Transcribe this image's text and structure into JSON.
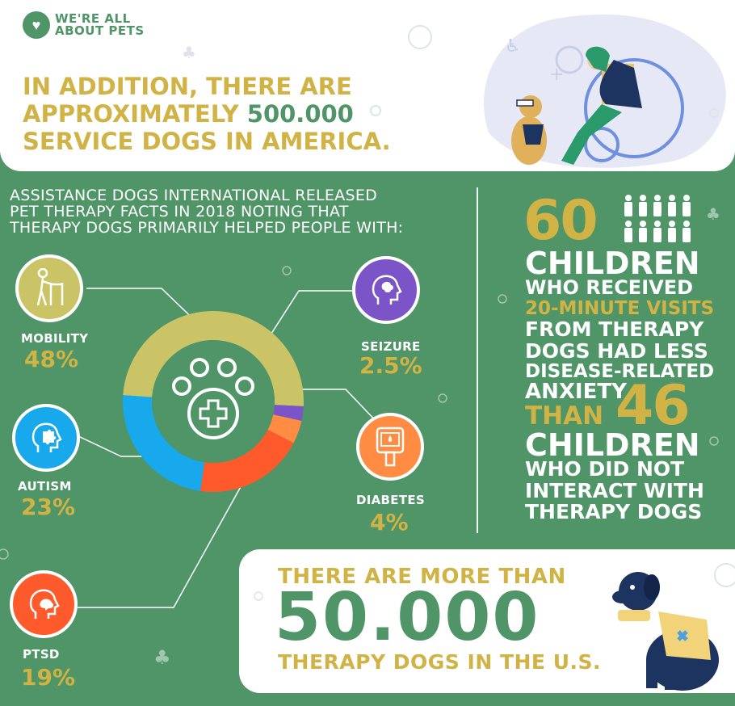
{
  "logo": {
    "line1": "WE'RE ALL",
    "line2": "ABOUT PETS"
  },
  "headline": {
    "line1": "IN ADDITION, THERE ARE",
    "line2_prefix": "APPROXIMATELY ",
    "line2_highlight": "500.000",
    "line3": "SERVICE DOGS IN AMERICA."
  },
  "adi": {
    "line1": "ASSISTANCE DOGS INTERNATIONAL RELEASED",
    "line2": "PET THERAPY FACTS IN 2018 NOTING THAT",
    "line3": "THERAPY DOGS PRIMARILY HELPED PEOPLE WITH:"
  },
  "categories": [
    {
      "label": "MOBILITY",
      "pct": "48%",
      "icon": "walker-icon",
      "color": "#cbc466"
    },
    {
      "label": "SEIZURE",
      "pct": "2.5%",
      "icon": "brain-head-icon",
      "color": "#7b55c7"
    },
    {
      "label": "DIABETES",
      "pct": "4%",
      "icon": "glucose-meter-icon",
      "color": "#ff8c42"
    },
    {
      "label": "PTSD",
      "pct": "19%",
      "icon": "head-stress-icon",
      "color": "#ff5a2b"
    },
    {
      "label": "AUTISM",
      "pct": "23%",
      "icon": "puzzle-head-icon",
      "color": "#18a8ec"
    }
  ],
  "chart_data": {
    "type": "pie",
    "categories": [
      "MOBILITY",
      "SEIZURE",
      "DIABETES",
      "PTSD",
      "AUTISM"
    ],
    "values": [
      48,
      2.5,
      4,
      19,
      23
    ],
    "colors": [
      "#cbc466",
      "#7b55c7",
      "#ff8c42",
      "#ff5a2b",
      "#18a8ec"
    ]
  },
  "stat": {
    "num1": "60",
    "line1": "CHILDREN",
    "line2": "WHO RECEIVED",
    "line3": "20-MINUTE VISITS",
    "line4": "FROM THERAPY",
    "line5": "DOGS HAD LESS",
    "line6": "DISEASE-RELATED",
    "line7": "ANXIETY",
    "line8": "THAN",
    "num2": "46",
    "line9": "CHILDREN",
    "line10": "WHO DID NOT",
    "line11": "INTERACT WITH",
    "line12": "THERAPY DOGS"
  },
  "therapy": {
    "top": "THERE ARE MORE THAN",
    "number": "50.000",
    "bottom": "THERAPY DOGS IN THE U.S."
  },
  "colors": {
    "green": "#4f9567",
    "gold": "#d0b344",
    "white": "#ffffff"
  }
}
